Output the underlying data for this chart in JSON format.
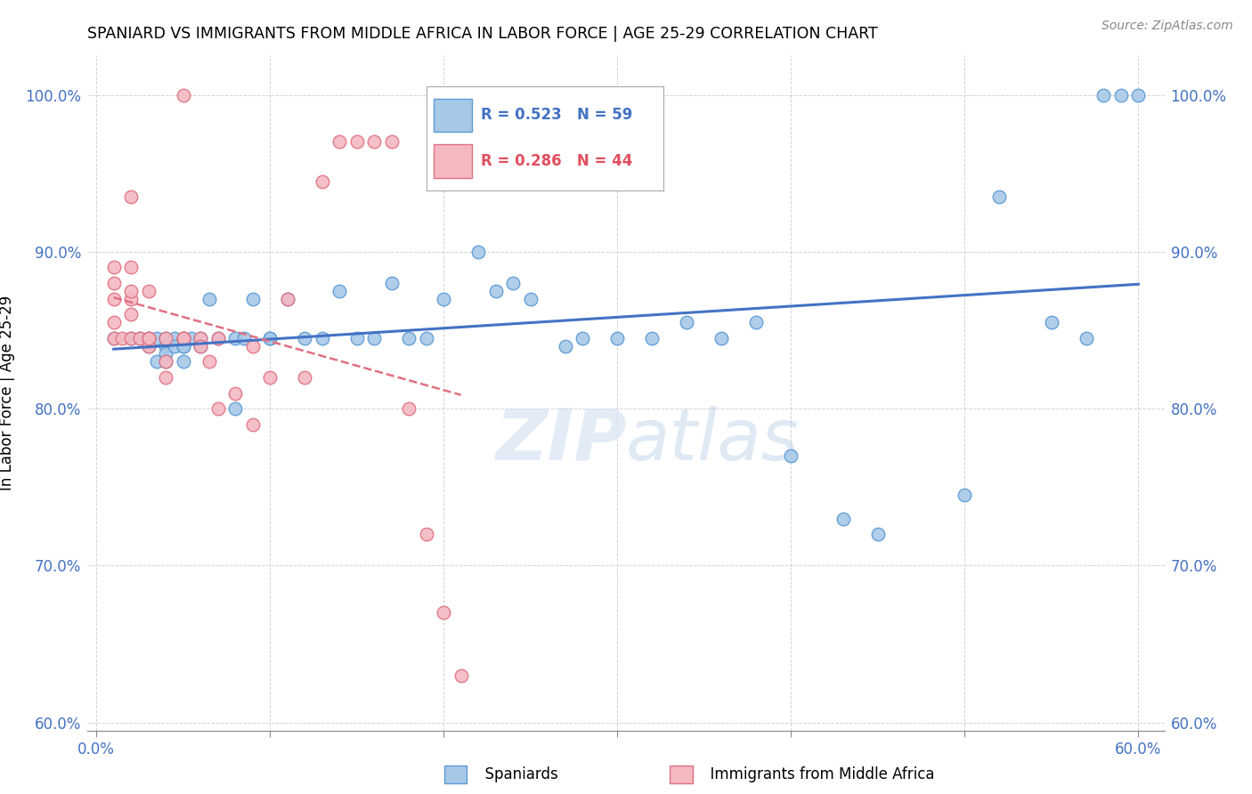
{
  "title": "SPANIARD VS IMMIGRANTS FROM MIDDLE AFRICA IN LABOR FORCE | AGE 25-29 CORRELATION CHART",
  "source": "Source: ZipAtlas.com",
  "ylabel": "In Labor Force | Age 25-29",
  "xlim": [
    -0.005,
    0.615
  ],
  "ylim": [
    0.595,
    1.025
  ],
  "yticks": [
    0.6,
    0.7,
    0.8,
    0.9,
    1.0
  ],
  "ytick_labels": [
    "60.0%",
    "70.0%",
    "80.0%",
    "90.0%",
    "100.0%"
  ],
  "xticks": [
    0.0,
    0.1,
    0.2,
    0.3,
    0.4,
    0.5,
    0.6
  ],
  "blue_color": "#a8c8e8",
  "blue_edge_color": "#5b9bd5",
  "pink_color": "#f4b8c1",
  "pink_edge_color": "#e07080",
  "blue_line_color": "#4472c4",
  "pink_line_color": "#e07080",
  "axis_label_color": "#4472c4",
  "grid_color": "#c8c8c8",
  "watermark": "ZIPatlas",
  "legend_blue_R": "R = 0.523",
  "legend_blue_N": "N = 59",
  "legend_pink_R": "R = 0.286",
  "legend_pink_N": "N = 44",
  "blue_scatter_x": [
    0.01,
    0.02,
    0.025,
    0.03,
    0.03,
    0.035,
    0.035,
    0.04,
    0.04,
    0.04,
    0.04,
    0.045,
    0.045,
    0.05,
    0.05,
    0.05,
    0.05,
    0.055,
    0.06,
    0.06,
    0.065,
    0.07,
    0.08,
    0.08,
    0.085,
    0.09,
    0.1,
    0.1,
    0.11,
    0.12,
    0.13,
    0.14,
    0.15,
    0.16,
    0.17,
    0.18,
    0.19,
    0.2,
    0.22,
    0.23,
    0.24,
    0.25,
    0.27,
    0.28,
    0.3,
    0.32,
    0.34,
    0.36,
    0.38,
    0.4,
    0.43,
    0.45,
    0.5,
    0.52,
    0.55,
    0.57,
    0.58,
    0.59,
    0.6
  ],
  "blue_scatter_y": [
    0.845,
    0.845,
    0.845,
    0.845,
    0.84,
    0.845,
    0.83,
    0.845,
    0.84,
    0.835,
    0.83,
    0.845,
    0.84,
    0.845,
    0.84,
    0.84,
    0.83,
    0.845,
    0.845,
    0.84,
    0.87,
    0.845,
    0.8,
    0.845,
    0.845,
    0.87,
    0.845,
    0.845,
    0.87,
    0.845,
    0.845,
    0.875,
    0.845,
    0.845,
    0.88,
    0.845,
    0.845,
    0.87,
    0.9,
    0.875,
    0.88,
    0.87,
    0.84,
    0.845,
    0.845,
    0.845,
    0.855,
    0.845,
    0.855,
    0.77,
    0.73,
    0.72,
    0.745,
    0.935,
    0.855,
    0.845,
    1.0,
    1.0,
    1.0
  ],
  "pink_scatter_x": [
    0.01,
    0.01,
    0.01,
    0.01,
    0.01,
    0.015,
    0.02,
    0.02,
    0.02,
    0.02,
    0.02,
    0.02,
    0.025,
    0.03,
    0.03,
    0.03,
    0.03,
    0.04,
    0.04,
    0.04,
    0.05,
    0.05,
    0.05,
    0.06,
    0.06,
    0.065,
    0.07,
    0.07,
    0.08,
    0.09,
    0.09,
    0.1,
    0.11,
    0.12,
    0.13,
    0.14,
    0.15,
    0.16,
    0.17,
    0.18,
    0.19,
    0.2,
    0.21,
    0.05
  ],
  "pink_scatter_y": [
    0.845,
    0.855,
    0.87,
    0.88,
    0.89,
    0.845,
    0.845,
    0.86,
    0.87,
    0.875,
    0.89,
    0.935,
    0.845,
    0.845,
    0.84,
    0.845,
    0.875,
    0.845,
    0.83,
    0.82,
    0.845,
    0.845,
    0.845,
    0.845,
    0.84,
    0.83,
    0.845,
    0.8,
    0.81,
    0.84,
    0.79,
    0.82,
    0.87,
    0.82,
    0.945,
    0.97,
    0.97,
    0.97,
    0.97,
    0.8,
    0.72,
    0.67,
    0.63,
    1.0
  ]
}
